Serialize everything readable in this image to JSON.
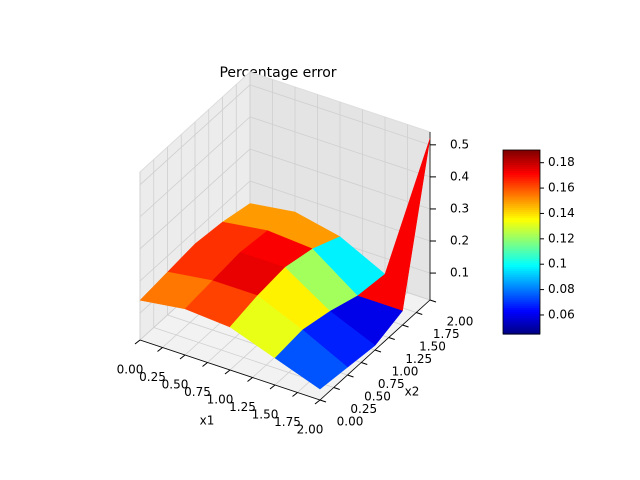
{
  "chart_data": {
    "type": "surface3d",
    "title": "Percentage error",
    "xlabel": "x1",
    "ylabel": "x2",
    "x": [
      0,
      0.5,
      1,
      1.5,
      2
    ],
    "y": [
      0,
      0.5,
      1,
      1.5,
      2
    ],
    "z": [
      [
        0.14,
        0.15,
        0.16,
        0.15,
        0.13
      ],
      [
        0.16,
        0.17,
        0.18,
        0.17,
        0.15
      ],
      [
        0.15,
        0.17,
        0.18,
        0.16,
        0.12
      ],
      [
        0.1,
        0.11,
        0.09,
        0.06,
        0.05
      ],
      [
        0.05,
        0.04,
        0.03,
        0.06,
        0.52
      ]
    ],
    "xlim": [
      0,
      2
    ],
    "ylim": [
      0,
      2
    ],
    "zlim": [
      0.016,
      0.54
    ],
    "xticks": [
      {
        "value": 0,
        "label": "0.00"
      },
      {
        "value": 0.25,
        "label": "0.25"
      },
      {
        "value": 0.5,
        "label": "0.50"
      },
      {
        "value": 0.75,
        "label": "0.75"
      },
      {
        "value": 1,
        "label": "1.00"
      },
      {
        "value": 1.25,
        "label": "1.25"
      },
      {
        "value": 1.5,
        "label": "1.50"
      },
      {
        "value": 1.75,
        "label": "1.75"
      },
      {
        "value": 2,
        "label": "2.00"
      }
    ],
    "yticks": [
      {
        "value": 0,
        "label": "0.00"
      },
      {
        "value": 0.25,
        "label": "0.25"
      },
      {
        "value": 0.5,
        "label": "0.50"
      },
      {
        "value": 0.75,
        "label": "0.75"
      },
      {
        "value": 1,
        "label": "1.00"
      },
      {
        "value": 1.25,
        "label": "1.25"
      },
      {
        "value": 1.5,
        "label": "1.50"
      },
      {
        "value": 1.75,
        "label": "1.75"
      },
      {
        "value": 2,
        "label": "2.00"
      }
    ],
    "zticks": [
      0.1,
      0.2,
      0.3,
      0.4,
      0.5
    ],
    "colormap": "jet",
    "clim": [
      0.045,
      0.19
    ],
    "colorbar_ticks": [
      0.06,
      0.08,
      0.1,
      0.12,
      0.14,
      0.16,
      0.18
    ],
    "grid": true
  }
}
